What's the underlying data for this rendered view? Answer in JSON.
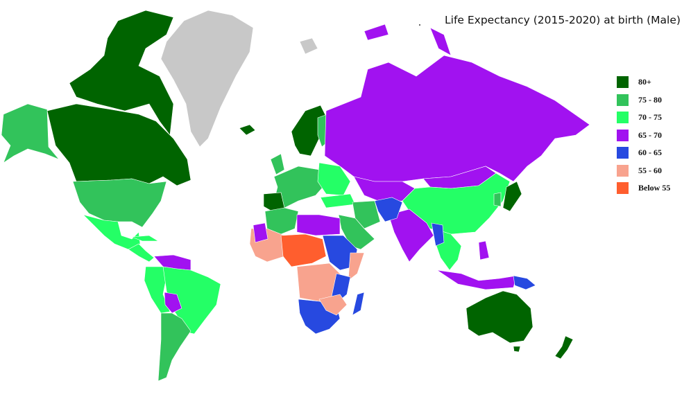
{
  "title": "Life Expectancy (2015-2020) at birth (Male)",
  "colors": {
    "c80": "#006400",
    "c75": "#32c35b",
    "c70": "#24ff66",
    "c65": "#a112f0",
    "c60": "#2749e0",
    "c55": "#f8a38e",
    "c0": "#ff5e2e",
    "nodata": "#c8c8c8"
  },
  "legend": [
    {
      "label": "80+",
      "color": "#006400"
    },
    {
      "label": "75 - 80",
      "color": "#32c35b"
    },
    {
      "label": "70 - 75",
      "color": "#24ff66"
    },
    {
      "label": "65 - 70",
      "color": "#a112f0"
    },
    {
      "label": "60 - 65",
      "color": "#2749e0"
    },
    {
      "label": "55 - 60",
      "color": "#f8a38e"
    },
    {
      "label": "Below 55",
      "color": "#ff5e2e"
    }
  ]
}
